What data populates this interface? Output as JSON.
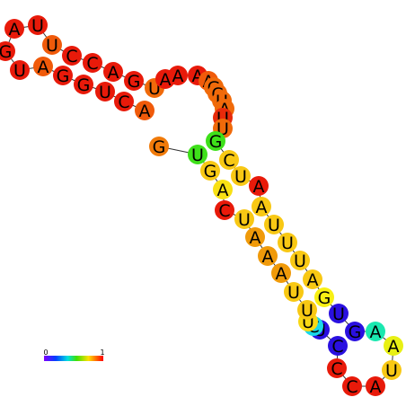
{
  "nodes": [
    {
      "label": "A",
      "color": "#f05a0a"
    },
    {
      "label": "C",
      "color": "#e81a0a"
    },
    {
      "label": "U",
      "color": "#e81a0a"
    },
    {
      "label": "G",
      "color": "#e81a0a"
    },
    {
      "label": "G",
      "color": "#e81a0a"
    },
    {
      "label": "A",
      "color": "#f05a0a"
    },
    {
      "label": "U",
      "color": "#e81a0a"
    },
    {
      "label": "G",
      "color": "#e81a0a"
    },
    {
      "label": "A",
      "color": "#e81a0a"
    },
    {
      "label": "U",
      "color": "#e81a0a"
    },
    {
      "label": "U",
      "color": "#f05a0a"
    },
    {
      "label": "C",
      "color": "#e81a0a"
    },
    {
      "label": "C",
      "color": "#e81a0a"
    },
    {
      "label": "A",
      "color": "#e81a0a"
    },
    {
      "label": "G",
      "color": "#e81a0a"
    },
    {
      "label": "U",
      "color": "#f06a0a"
    },
    {
      "label": "A",
      "color": "#e81a0a"
    },
    {
      "label": "A",
      "color": "#e81a0a"
    },
    {
      "label": "A",
      "color": "#e81a0a"
    },
    {
      "label": "A",
      "color": "#f05a0a"
    },
    {
      "label": "G",
      "color": "#f06a0a"
    },
    {
      "label": "C",
      "color": "#f06a0a"
    },
    {
      "label": "U",
      "color": "#f06a0a"
    },
    {
      "label": "A",
      "color": "#f06a0a"
    },
    {
      "label": "U",
      "color": "#e82a0a"
    },
    {
      "label": "U",
      "color": "#f06a0a"
    },
    {
      "label": "G",
      "color": "#3ee01a"
    },
    {
      "label": "C",
      "color": "#f8c814"
    },
    {
      "label": "U",
      "color": "#f8c814"
    },
    {
      "label": "A",
      "color": "#e81a0a"
    },
    {
      "label": "A",
      "color": "#f8c814"
    },
    {
      "label": "U",
      "color": "#f8c814"
    },
    {
      "label": "U",
      "color": "#f8c814"
    },
    {
      "label": "U",
      "color": "#f8c814"
    },
    {
      "label": "A",
      "color": "#f8c814"
    },
    {
      "label": "G",
      "color": "#f8f014"
    },
    {
      "label": "U",
      "color": "#2a10e0"
    },
    {
      "label": "G",
      "color": "#2a10e0"
    },
    {
      "label": "A",
      "color": "#1ae8b0"
    },
    {
      "label": "A",
      "color": "#e8f014"
    },
    {
      "label": "U",
      "color": "#f8c814"
    },
    {
      "label": "A",
      "color": "#e81a0a"
    },
    {
      "label": "C",
      "color": "#e81a0a"
    },
    {
      "label": "C",
      "color": "#e81a0a"
    },
    {
      "label": "C",
      "color": "#2a10e0"
    },
    {
      "label": "U",
      "color": "#2a10e0"
    },
    {
      "label": "C",
      "color": "#1ad8e8"
    },
    {
      "label": "U",
      "color": "#f8d814"
    },
    {
      "label": "U",
      "color": "#f8c814"
    },
    {
      "label": "U",
      "color": "#f8c814"
    },
    {
      "label": "A",
      "color": "#f09a0a"
    },
    {
      "label": "A",
      "color": "#f09a0a"
    },
    {
      "label": "A",
      "color": "#f09a0a"
    },
    {
      "label": "U",
      "color": "#f8c814"
    },
    {
      "label": "C",
      "color": "#e81a0a"
    },
    {
      "label": "A",
      "color": "#f8e014"
    },
    {
      "label": "G",
      "color": "#f8c814"
    },
    {
      "label": "U",
      "color": "#3ee01a"
    },
    {
      "label": "G",
      "color": "#f07a0a"
    }
  ],
  "colorbar": {
    "min_label": "0",
    "max_label": "1"
  }
}
